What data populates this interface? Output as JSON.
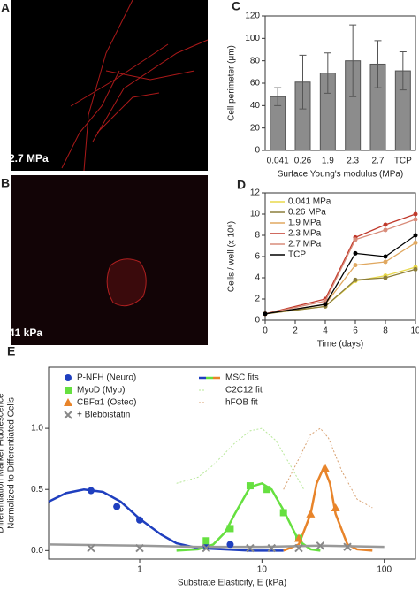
{
  "images": [
    {
      "label": "A",
      "caption": "2.7 MPa"
    },
    {
      "label": "B",
      "caption": "41 kPa"
    }
  ],
  "chart_data": [
    {
      "type": "bar",
      "panel": "C",
      "y_label": "Cell perimeter (μm)",
      "x_label": "Surface Young's modulus (MPa)",
      "categories": [
        "0.041",
        "0.26",
        "1.9",
        "2.3",
        "2.7",
        "TCP"
      ],
      "values": [
        48,
        61,
        69,
        80,
        77,
        71
      ],
      "errors": [
        8,
        24,
        18,
        32,
        21,
        17
      ],
      "color": "#8c8c8c",
      "ylim": [
        0,
        120
      ],
      "yticks": [
        0,
        20,
        40,
        60,
        80,
        100,
        120
      ]
    },
    {
      "type": "line",
      "panel": "D",
      "y_label": "Cells / well (x 10⁶)",
      "x_label": "Time (days)",
      "legend": "upper left",
      "x": [
        0,
        4,
        6,
        8,
        10
      ],
      "xlim": [
        0,
        10
      ],
      "xticks": [
        0,
        2,
        4,
        6,
        8,
        10
      ],
      "ylim": [
        0,
        12
      ],
      "yticks": [
        0,
        2,
        4,
        6,
        8,
        10,
        12
      ],
      "series": [
        {
          "name": "0.041 MPa",
          "color": "#e8d84a",
          "values": [
            0.6,
            1.3,
            3.7,
            4.2,
            5.0
          ]
        },
        {
          "name": "0.26 MPa",
          "color": "#8b7d3a",
          "values": [
            0.6,
            1.3,
            3.8,
            4.0,
            4.8
          ]
        },
        {
          "name": "1.9 MPa",
          "color": "#e0a860",
          "values": [
            0.6,
            1.5,
            5.2,
            5.5,
            7.3
          ]
        },
        {
          "name": "2.3 MPa",
          "color": "#c0392b",
          "values": [
            0.6,
            2.0,
            7.8,
            9.0,
            10.0
          ]
        },
        {
          "name": "2.7 MPa",
          "color": "#d98c7a",
          "values": [
            0.6,
            1.8,
            7.6,
            8.5,
            9.5
          ]
        },
        {
          "name": "TCP",
          "color": "#000000",
          "values": [
            0.6,
            1.5,
            6.3,
            6.0,
            8.0
          ]
        }
      ]
    },
    {
      "type": "scatter",
      "panel": "E",
      "y_label": [
        "Differentiation Marker Fluorescence",
        "Normalized to Differentiated Cells"
      ],
      "x_label": "Substrate Elasticity, E (kPa)",
      "x_log": true,
      "legend": "upper left",
      "xlim": [
        0.18,
        180
      ],
      "xticks": [
        1,
        10,
        100
      ],
      "ylim": [
        -0.07,
        1.5
      ],
      "yticks": [
        {
          "value": 0,
          "label": "0.0"
        },
        {
          "value": 0.5,
          "label": "0.5"
        },
        {
          "value": 1,
          "label": "1.0"
        }
      ],
      "series": [
        {
          "name": "P-NFH (Neuro)",
          "color": "#1f3fbf",
          "marker": "circle",
          "x": [
            0.4,
            0.65,
            1.0,
            3.5,
            5.5
          ],
          "values": [
            0.49,
            0.36,
            0.25,
            0.04,
            0.05
          ]
        },
        {
          "name": "MyoD (Myo)",
          "color": "#66e040",
          "marker": "square",
          "x": [
            3.5,
            5.5,
            8,
            11,
            15,
            20
          ],
          "values": [
            0.08,
            0.18,
            0.53,
            0.5,
            0.31,
            0.1
          ]
        },
        {
          "name": "CBFα1 (Osteo)",
          "color": "#e8842a",
          "marker": "triangle",
          "x": [
            20,
            25,
            33,
            40
          ],
          "values": [
            0.1,
            0.3,
            0.67,
            0.35
          ]
        },
        {
          "name": "+ Blebbistatin",
          "color": "#888888",
          "marker": "x",
          "x": [
            0.4,
            1,
            3.5,
            8,
            12,
            20,
            30,
            50
          ],
          "values": [
            0.02,
            0.02,
            0.02,
            0.02,
            0.02,
            0.02,
            0.04,
            0.03
          ]
        }
      ],
      "fits": [
        {
          "name": "MSC fits",
          "dashed": false,
          "curves": [
            {
              "color": "#1f3fbf",
              "x": [
                0.18,
                0.25,
                0.35,
                0.5,
                0.7,
                1,
                1.5,
                2,
                3,
                5,
                8,
                15
              ],
              "values": [
                0.4,
                0.47,
                0.5,
                0.48,
                0.4,
                0.26,
                0.13,
                0.06,
                0.02,
                0.01,
                0,
                0
              ]
            },
            {
              "color": "#66e040",
              "x": [
                2,
                3,
                4,
                5,
                6,
                8,
                10,
                12,
                15,
                20,
                25,
                30
              ],
              "values": [
                0,
                0.01,
                0.05,
                0.15,
                0.3,
                0.52,
                0.55,
                0.5,
                0.33,
                0.08,
                0.01,
                0
              ]
            },
            {
              "color": "#e8842a",
              "x": [
                15,
                20,
                25,
                28,
                32,
                36,
                40,
                50,
                60,
                80
              ],
              "values": [
                0,
                0.05,
                0.3,
                0.55,
                0.68,
                0.55,
                0.3,
                0.05,
                0.01,
                0
              ]
            },
            {
              "color": "#999999",
              "x": [
                0.18,
                1,
                3,
                10,
                30,
                100
              ],
              "values": [
                0.05,
                0.04,
                0.03,
                0.03,
                0.04,
                0.03
              ]
            }
          ]
        },
        {
          "name": "C2C12 fit",
          "dashed": true,
          "curves": [
            {
              "color": "#b8e89a",
              "x": [
                2,
                3,
                4,
                6,
                8,
                10,
                13,
                17,
                22
              ],
              "values": [
                0.55,
                0.6,
                0.7,
                0.88,
                0.98,
                1.0,
                0.9,
                0.7,
                0.5
              ]
            }
          ]
        },
        {
          "name": "hFOB fit",
          "dashed": true,
          "curves": [
            {
              "color": "#d8a070",
              "x": [
                15,
                20,
                25,
                30,
                35,
                45,
                60,
                80
              ],
              "values": [
                0.5,
                0.75,
                0.95,
                1.0,
                0.92,
                0.65,
                0.42,
                0.35
              ]
            }
          ]
        }
      ]
    }
  ]
}
